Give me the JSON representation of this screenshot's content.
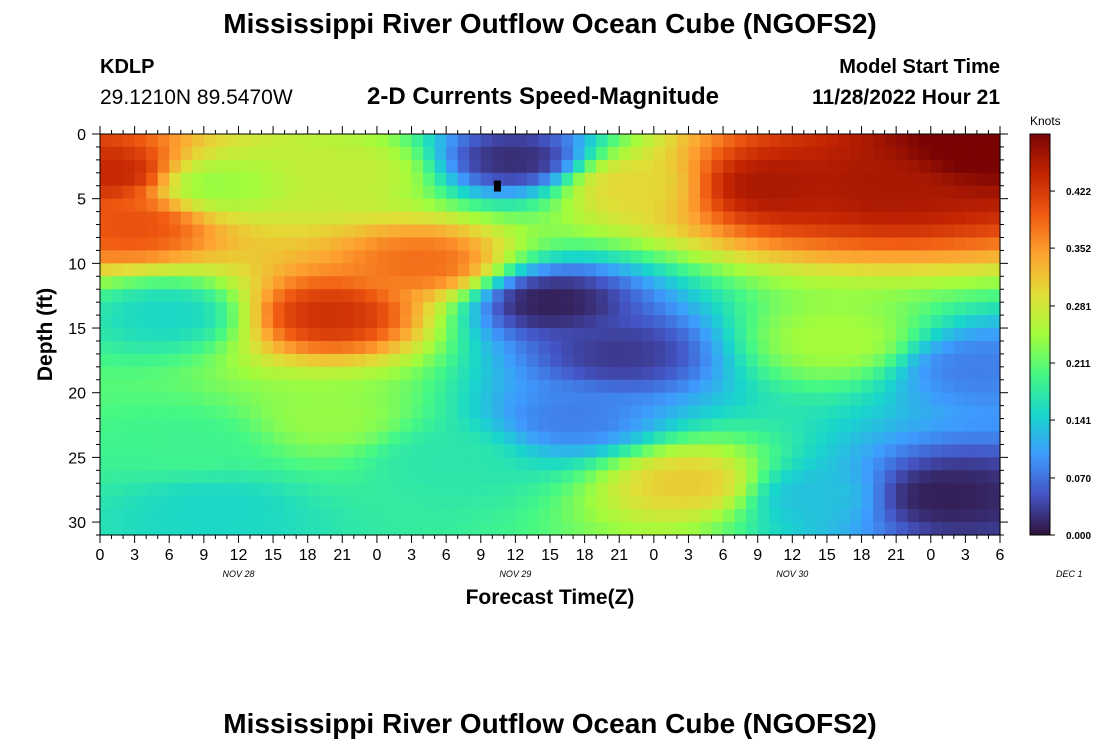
{
  "header": {
    "title": "Mississippi River Outflow Ocean Cube (NGOFS2)",
    "station_id": "KDLP",
    "coordinates": "29.1210N  89.5470W",
    "subtitle": "2-D Currents Speed-Magnitude",
    "model_start_label": "Model Start Time",
    "model_start_value": "11/28/2022 Hour 21"
  },
  "footer": {
    "title": "Mississippi River Outflow Ocean Cube (NGOFS2)"
  },
  "chart_data": {
    "type": "heatmap",
    "xlabel": "Forecast Time(Z)",
    "ylabel": "Depth (ft)",
    "x_ticks": [
      "0",
      "3",
      "6",
      "9",
      "12",
      "15",
      "18",
      "21",
      "0",
      "3",
      "6",
      "9",
      "12",
      "15",
      "18",
      "21",
      "0",
      "3",
      "6",
      "9",
      "12",
      "15",
      "18",
      "21",
      "0",
      "3",
      "6"
    ],
    "day_labels": [
      {
        "label": "NOV 28",
        "hour": 12
      },
      {
        "label": "NOV 29",
        "hour": 36
      },
      {
        "label": "NOV 30",
        "hour": 60
      },
      {
        "label": "DEC 1",
        "hour": 84
      }
    ],
    "xlim": [
      0,
      78
    ],
    "y_ticks": [
      0,
      5,
      10,
      15,
      20,
      25,
      30
    ],
    "ylim": [
      0,
      31
    ],
    "colorbar": {
      "label": "Knots",
      "ticks": [
        "0.000",
        "0.070",
        "0.141",
        "0.211",
        "0.281",
        "0.352",
        "0.422"
      ],
      "range": [
        0,
        0.492
      ],
      "colors": [
        "#30123b",
        "#4454c4",
        "#3e9bfe",
        "#18d6cb",
        "#46f884",
        "#a2fc3c",
        "#e1dd37",
        "#fea331",
        "#ef5911",
        "#c22402",
        "#7a0403"
      ]
    },
    "features": [
      {
        "hour": 1,
        "depth": 3,
        "speed": 0.44
      },
      {
        "hour": 3,
        "depth": 7,
        "speed": 0.4
      },
      {
        "hour": 6,
        "depth": 14,
        "speed": 0.15
      },
      {
        "hour": 10,
        "depth": 4,
        "speed": 0.24
      },
      {
        "hour": 20,
        "depth": 14,
        "speed": 0.43
      },
      {
        "hour": 28,
        "depth": 10,
        "speed": 0.38
      },
      {
        "hour": 22,
        "depth": 3,
        "speed": 0.27
      },
      {
        "hour": 36,
        "depth": 2,
        "speed": 0.02
      },
      {
        "hour": 39,
        "depth": 13,
        "speed": 0.01
      },
      {
        "hour": 45,
        "depth": 17,
        "speed": 0.03
      },
      {
        "hour": 41,
        "depth": 22,
        "speed": 0.08
      },
      {
        "hour": 46,
        "depth": 4,
        "speed": 0.3
      },
      {
        "hour": 51,
        "depth": 27,
        "speed": 0.31
      },
      {
        "hour": 58,
        "depth": 4,
        "speed": 0.46
      },
      {
        "hour": 68,
        "depth": 4,
        "speed": 0.46
      },
      {
        "hour": 76,
        "depth": 1,
        "speed": 0.5
      },
      {
        "hour": 64,
        "depth": 16,
        "speed": 0.25
      },
      {
        "hour": 76,
        "depth": 18,
        "speed": 0.08
      },
      {
        "hour": 73,
        "depth": 28,
        "speed": 0.01
      },
      {
        "hour": 10,
        "depth": 29,
        "speed": 0.15
      },
      {
        "hour": 30,
        "depth": 25,
        "speed": 0.17
      },
      {
        "hour": 62,
        "depth": 28,
        "speed": 0.13
      },
      {
        "hour": 20,
        "depth": 22,
        "speed": 0.24
      },
      {
        "hour": 8,
        "depth": 24,
        "speed": 0.19
      }
    ],
    "grid": false
  }
}
